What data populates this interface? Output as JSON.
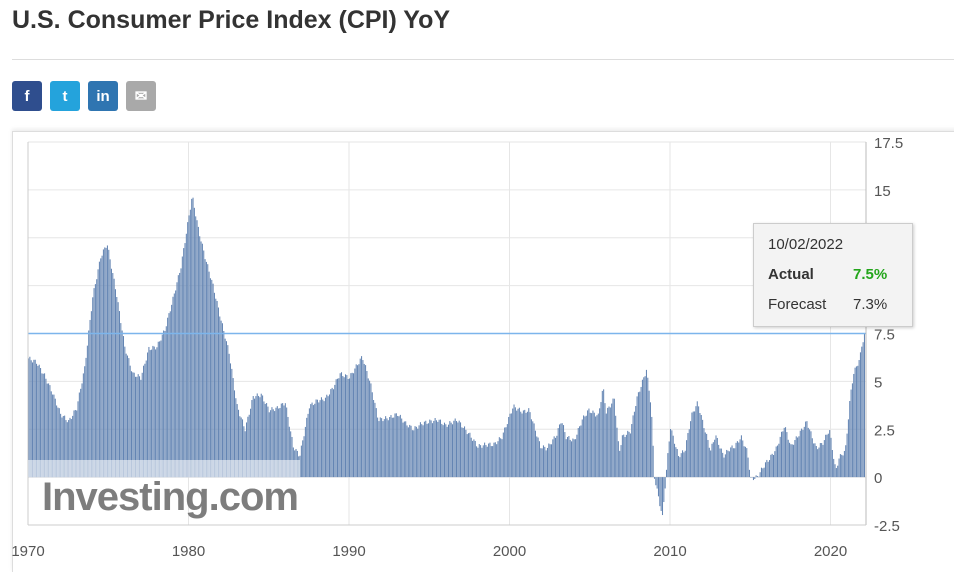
{
  "title": "U.S. Consumer Price Index (CPI) YoY",
  "share": [
    {
      "name": "facebook",
      "glyph": "f",
      "color": "#2f4e8e"
    },
    {
      "name": "twitter",
      "glyph": "t",
      "color": "#24a3dc"
    },
    {
      "name": "linkedin",
      "glyph": "in",
      "color": "#2f75b1"
    },
    {
      "name": "email",
      "glyph": "✉",
      "color": "#a9a9a9"
    }
  ],
  "tooltip": {
    "date": "10/02/2022",
    "actual_label": "Actual",
    "actual_value": "7.5%",
    "forecast_label": "Forecast",
    "forecast_value": "7.3%",
    "actual_color": "#23a51b"
  },
  "logo": "Investing.com",
  "chart_data": {
    "type": "bar",
    "title": "U.S. Consumer Price Index (CPI) YoY",
    "xlabel": "",
    "ylabel": "",
    "ylim": [
      -2.5,
      17.5
    ],
    "xlim": [
      1970,
      2022.2
    ],
    "yticks": [
      "17.5",
      "15",
      "12.5",
      "10",
      "7.5",
      "5",
      "2.5",
      "0",
      "-2.5"
    ],
    "xticks": [
      "1970",
      "1980",
      "1990",
      "2000",
      "2010",
      "2020"
    ],
    "reference_line": 7.5,
    "bar_color": "#6485b3",
    "series_anchor_points_monthly_interpolated": [
      [
        1970.0,
        6.2
      ],
      [
        1970.5,
        6.0
      ],
      [
        1971.0,
        5.3
      ],
      [
        1971.5,
        4.4
      ],
      [
        1972.0,
        3.3
      ],
      [
        1972.5,
        2.9
      ],
      [
        1973.0,
        3.6
      ],
      [
        1973.5,
        5.7
      ],
      [
        1974.0,
        9.4
      ],
      [
        1974.5,
        11.5
      ],
      [
        1974.9,
        12.2
      ],
      [
        1975.5,
        9.5
      ],
      [
        1976.0,
        6.8
      ],
      [
        1976.5,
        5.4
      ],
      [
        1977.0,
        5.2
      ],
      [
        1977.5,
        6.7
      ],
      [
        1978.0,
        6.8
      ],
      [
        1978.5,
        7.7
      ],
      [
        1979.0,
        9.3
      ],
      [
        1979.5,
        11.0
      ],
      [
        1980.2,
        14.7
      ],
      [
        1980.6,
        12.9
      ],
      [
        1981.0,
        11.5
      ],
      [
        1981.5,
        10.0
      ],
      [
        1982.0,
        8.2
      ],
      [
        1982.5,
        6.5
      ],
      [
        1983.0,
        3.7
      ],
      [
        1983.5,
        2.5
      ],
      [
        1984.0,
        4.2
      ],
      [
        1984.5,
        4.3
      ],
      [
        1985.0,
        3.5
      ],
      [
        1985.5,
        3.6
      ],
      [
        1986.0,
        3.9
      ],
      [
        1986.5,
        1.6
      ],
      [
        1986.9,
        1.1
      ],
      [
        1987.5,
        3.7
      ],
      [
        1988.0,
        4.0
      ],
      [
        1988.5,
        4.1
      ],
      [
        1989.0,
        4.7
      ],
      [
        1989.4,
        5.4
      ],
      [
        1990.0,
        5.2
      ],
      [
        1990.8,
        6.3
      ],
      [
        1991.3,
        4.9
      ],
      [
        1991.8,
        3.0
      ],
      [
        1992.5,
        3.1
      ],
      [
        1993.0,
        3.3
      ],
      [
        1993.5,
        2.8
      ],
      [
        1994.0,
        2.5
      ],
      [
        1994.5,
        2.8
      ],
      [
        1995.0,
        2.9
      ],
      [
        1995.5,
        3.0
      ],
      [
        1996.0,
        2.7
      ],
      [
        1996.7,
        3.0
      ],
      [
        1997.5,
        2.2
      ],
      [
        1998.0,
        1.6
      ],
      [
        1998.5,
        1.7
      ],
      [
        1999.0,
        1.7
      ],
      [
        1999.5,
        2.1
      ],
      [
        2000.2,
        3.7
      ],
      [
        2000.8,
        3.4
      ],
      [
        2001.2,
        3.5
      ],
      [
        2001.9,
        1.6
      ],
      [
        2002.3,
        1.5
      ],
      [
        2002.9,
        2.2
      ],
      [
        2003.2,
        3.0
      ],
      [
        2003.5,
        2.1
      ],
      [
        2004.0,
        1.9
      ],
      [
        2004.5,
        3.0
      ],
      [
        2004.9,
        3.5
      ],
      [
        2005.5,
        3.2
      ],
      [
        2005.8,
        4.7
      ],
      [
        2006.0,
        3.4
      ],
      [
        2006.5,
        4.1
      ],
      [
        2006.8,
        1.3
      ],
      [
        2007.0,
        2.1
      ],
      [
        2007.5,
        2.4
      ],
      [
        2007.9,
        4.1
      ],
      [
        2008.5,
        5.6
      ],
      [
        2008.8,
        3.7
      ],
      [
        2009.0,
        0.0
      ],
      [
        2009.5,
        -2.1
      ],
      [
        2009.9,
        1.8
      ],
      [
        2010.0,
        2.6
      ],
      [
        2010.5,
        1.1
      ],
      [
        2010.9,
        1.4
      ],
      [
        2011.3,
        3.2
      ],
      [
        2011.7,
        3.9
      ],
      [
        2012.0,
        2.9
      ],
      [
        2012.5,
        1.4
      ],
      [
        2012.8,
        2.2
      ],
      [
        2013.3,
        1.1
      ],
      [
        2013.7,
        1.5
      ],
      [
        2014.0,
        1.6
      ],
      [
        2014.4,
        2.1
      ],
      [
        2014.8,
        1.3
      ],
      [
        2015.0,
        -0.1
      ],
      [
        2015.4,
        0.0
      ],
      [
        2015.9,
        0.7
      ],
      [
        2016.2,
        1.0
      ],
      [
        2016.6,
        1.5
      ],
      [
        2017.1,
        2.7
      ],
      [
        2017.5,
        1.6
      ],
      [
        2017.9,
        2.1
      ],
      [
        2018.5,
        2.9
      ],
      [
        2018.9,
        1.9
      ],
      [
        2019.1,
        1.5
      ],
      [
        2019.5,
        1.8
      ],
      [
        2019.9,
        2.5
      ],
      [
        2020.3,
        0.3
      ],
      [
        2020.5,
        1.0
      ],
      [
        2020.9,
        1.4
      ],
      [
        2021.2,
        4.2
      ],
      [
        2021.4,
        5.4
      ],
      [
        2021.8,
        6.2
      ],
      [
        2021.9,
        6.8
      ],
      [
        2022.1,
        7.5
      ]
    ]
  }
}
